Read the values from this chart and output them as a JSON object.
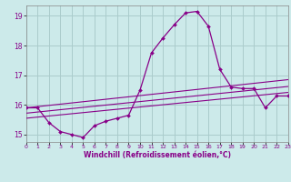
{
  "title": "",
  "xlabel": "Windchill (Refroidissement éolien,°C)",
  "ylabel": "",
  "background_color": "#cceaea",
  "grid_color": "#aacccc",
  "line_color": "#880088",
  "xmin": 0,
  "xmax": 23,
  "ymin": 14.75,
  "ymax": 19.35,
  "yticks": [
    15,
    16,
    17,
    18,
    19
  ],
  "xticks": [
    0,
    1,
    2,
    3,
    4,
    5,
    6,
    7,
    8,
    9,
    10,
    11,
    12,
    13,
    14,
    15,
    16,
    17,
    18,
    19,
    20,
    21,
    22,
    23
  ],
  "line1_x": [
    0,
    1,
    2,
    3,
    4,
    5,
    6,
    7,
    8,
    9,
    10,
    11,
    12,
    13,
    14,
    15,
    16,
    17,
    18,
    19,
    20,
    21,
    22,
    23
  ],
  "line1_y": [
    15.9,
    15.9,
    15.4,
    15.1,
    15.0,
    14.9,
    15.3,
    15.45,
    15.55,
    15.65,
    16.5,
    17.75,
    18.25,
    18.7,
    19.1,
    19.15,
    18.65,
    17.2,
    16.6,
    16.55,
    16.55,
    15.9,
    16.3,
    16.3
  ],
  "line2_x": [
    0,
    23
  ],
  "line2_y": [
    15.9,
    16.85
  ],
  "line3_x": [
    0,
    23
  ],
  "line3_y": [
    15.72,
    16.62
  ],
  "line4_x": [
    0,
    23
  ],
  "line4_y": [
    15.55,
    16.42
  ]
}
